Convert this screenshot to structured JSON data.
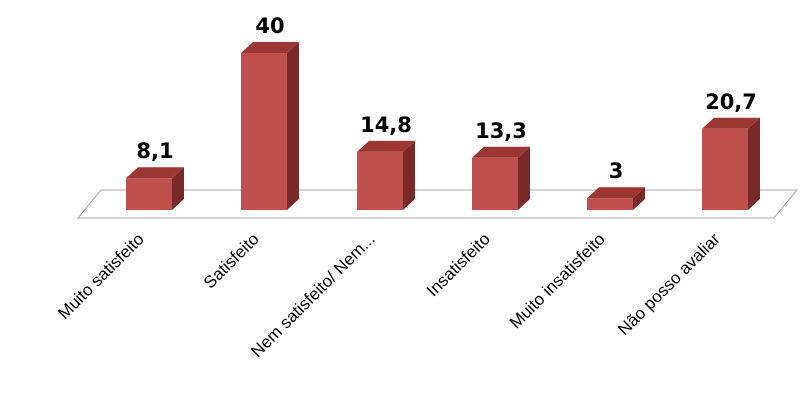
{
  "chart_data": {
    "type": "bar",
    "style": "3d-column",
    "categories": [
      "Muito satisfeito",
      "Satisfeito",
      "Nem satisfeito/ Nem...",
      "Insatisfeito",
      "Muito insatisfeito",
      "Não posso avaliar"
    ],
    "values": [
      8.1,
      40,
      14.8,
      13.3,
      3,
      20.7
    ],
    "value_labels": [
      "8,1",
      "40",
      "14,8",
      "13,3",
      "3",
      "20,7"
    ],
    "title": "",
    "xlabel": "",
    "ylabel": "",
    "ylim": [
      0,
      40
    ],
    "grid": false,
    "legend": "none",
    "colors": {
      "bar_front": "#c0504d",
      "bar_side": "#7a2a28",
      "bar_top": "#9c3633",
      "floor": "#ffffff",
      "floor_edge": "#a6a6a6"
    }
  }
}
